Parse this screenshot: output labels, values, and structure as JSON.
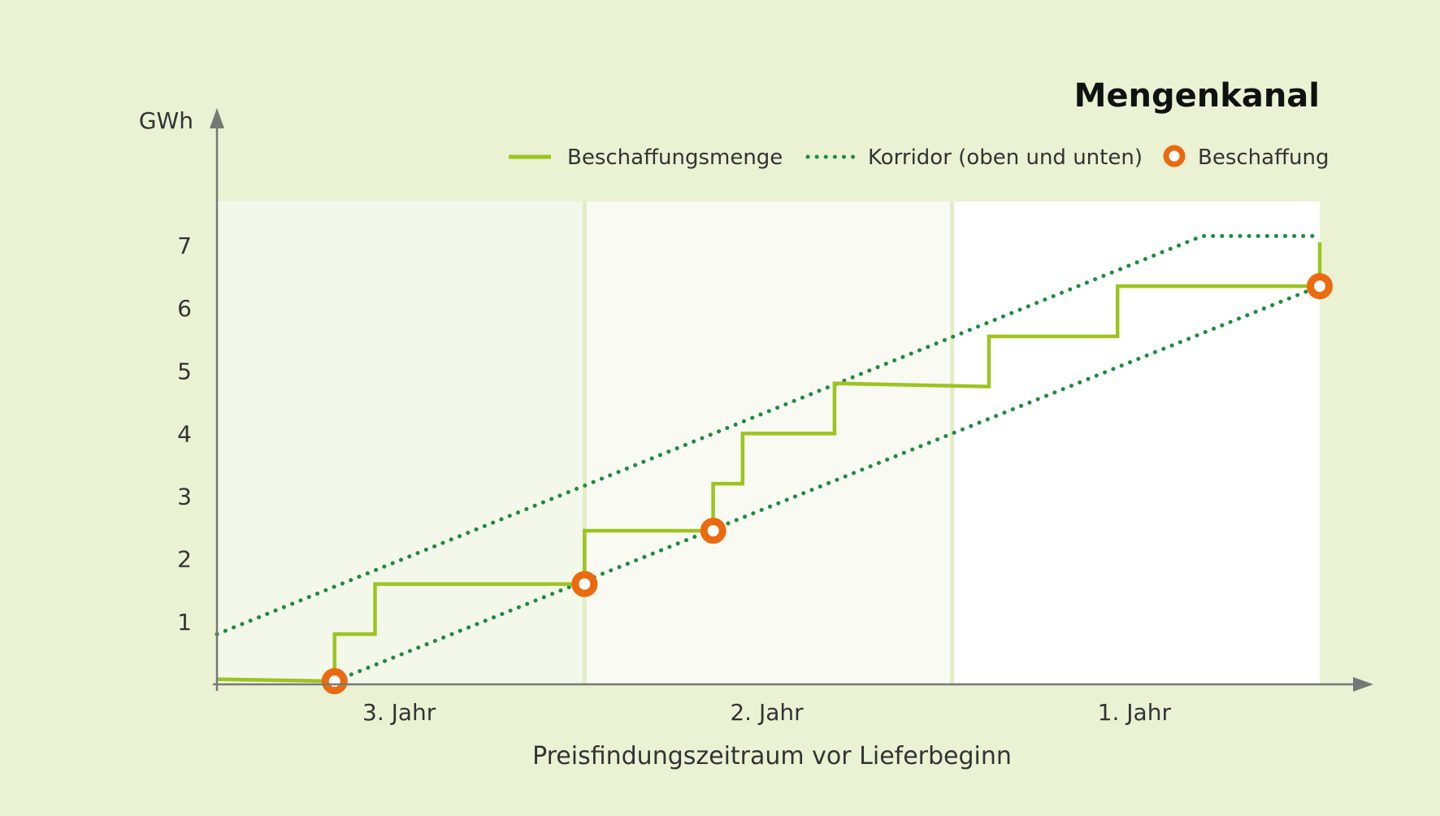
{
  "chart_data": {
    "type": "line",
    "title": "Mengenkanal",
    "xlabel": "Preisfindungszeitraum vor Lieferbeginn",
    "ylabel": "GWh",
    "y_ticks": [
      1,
      2,
      3,
      4,
      5,
      6,
      7
    ],
    "ylim": [
      0,
      7.7
    ],
    "xlim": [
      0,
      3
    ],
    "categories": [
      "3. Jahr",
      "2. Jahr",
      "1. Jahr"
    ],
    "colors": {
      "background": "#eaf2d3",
      "year3_panel": "#f4f8ea",
      "year2_panel": "#f9fbf3",
      "year1_panel": "#ffffff",
      "separator": "#e3ecc6",
      "beschaffungsmenge": "#9cc41f",
      "korridor": "#1e8c40",
      "beschaffung": "#ec6a0f",
      "axis": "#777777"
    },
    "legend": {
      "position": "top-right",
      "entries": [
        {
          "label": "Beschaffungsmenge",
          "style": "line"
        },
        {
          "label": "Korridor (oben und unten)",
          "style": "dotted"
        },
        {
          "label": "Beschaffung",
          "style": "marker"
        }
      ]
    },
    "series": [
      {
        "name": "Beschaffungsmenge",
        "points": [
          [
            0,
            0.08
          ],
          [
            0.32,
            0.05
          ],
          [
            0.32,
            0.8
          ],
          [
            0.43,
            0.8
          ],
          [
            0.43,
            1.6
          ],
          [
            1.0,
            1.6
          ],
          [
            1.0,
            2.45
          ],
          [
            1.35,
            2.45
          ],
          [
            1.35,
            3.2
          ],
          [
            1.43,
            3.2
          ],
          [
            1.43,
            4.0
          ],
          [
            1.68,
            4.0
          ],
          [
            1.68,
            4.8
          ],
          [
            2.1,
            4.75
          ],
          [
            2.1,
            5.55
          ],
          [
            2.45,
            5.55
          ],
          [
            2.45,
            6.35
          ],
          [
            3.0,
            6.35
          ],
          [
            3.0,
            7.05
          ]
        ]
      },
      {
        "name": "Korridor oben",
        "points": [
          [
            0,
            0.8
          ],
          [
            2.68,
            7.15
          ],
          [
            3.0,
            7.15
          ]
        ]
      },
      {
        "name": "Korridor unten",
        "points": [
          [
            0.32,
            0.05
          ],
          [
            3.0,
            6.35
          ]
        ]
      },
      {
        "name": "Beschaffung",
        "points": [
          [
            0.32,
            0.05
          ],
          [
            1.0,
            1.6
          ],
          [
            1.35,
            2.45
          ],
          [
            3.0,
            6.35
          ]
        ]
      }
    ]
  }
}
